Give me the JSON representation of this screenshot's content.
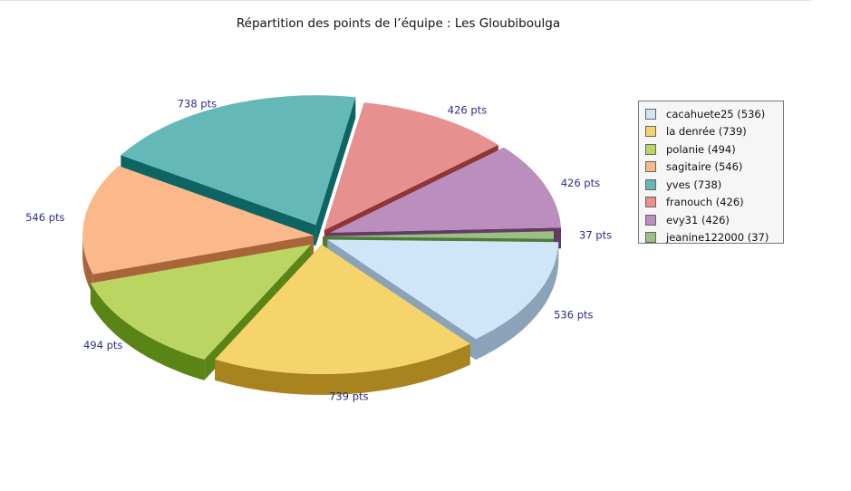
{
  "chart_data": {
    "type": "pie",
    "title": "Répartition des points de l’équipe : Les Gloubiboulga",
    "slices": [
      {
        "name": "cacahuete25",
        "legend": "cacahuete25 (536)",
        "value": 536,
        "label": "536 pts",
        "color": "#cfe6f9",
        "side_color": "#8aa3b8"
      },
      {
        "name": "la denrée",
        "legend": "la denrée (739)",
        "value": 739,
        "label": "739 pts",
        "color": "#f5d56b",
        "side_color": "#a8831e"
      },
      {
        "name": "polanie",
        "legend": "polanie (494)",
        "value": 494,
        "label": "494 pts",
        "color": "#bbd563",
        "side_color": "#5a8416"
      },
      {
        "name": "sagitaire",
        "legend": "sagitaire (546)",
        "value": 546,
        "label": "546 pts",
        "color": "#fbb88a",
        "side_color": "#a8653a"
      },
      {
        "name": "yves",
        "legend": "yves (738)",
        "value": 738,
        "label": "738 pts",
        "color": "#64b8b8",
        "side_color": "#0c6563"
      },
      {
        "name": "franouch",
        "legend": "franouch (426)",
        "value": 426,
        "label": "426 pts",
        "color": "#e89090",
        "side_color": "#8e3535"
      },
      {
        "name": "evy31",
        "legend": "evy31 (426)",
        "value": 426,
        "label": "426 pts",
        "color": "#bb8fbd",
        "side_color": "#643a68"
      },
      {
        "name": "jeanine122000",
        "legend": "jeanine122000 (37)",
        "value": 37,
        "label": "37 pts",
        "color": "#9cbf84",
        "side_color": "#4e7a3c"
      }
    ],
    "legend_position": "right",
    "exploded": true,
    "three_d": true
  }
}
